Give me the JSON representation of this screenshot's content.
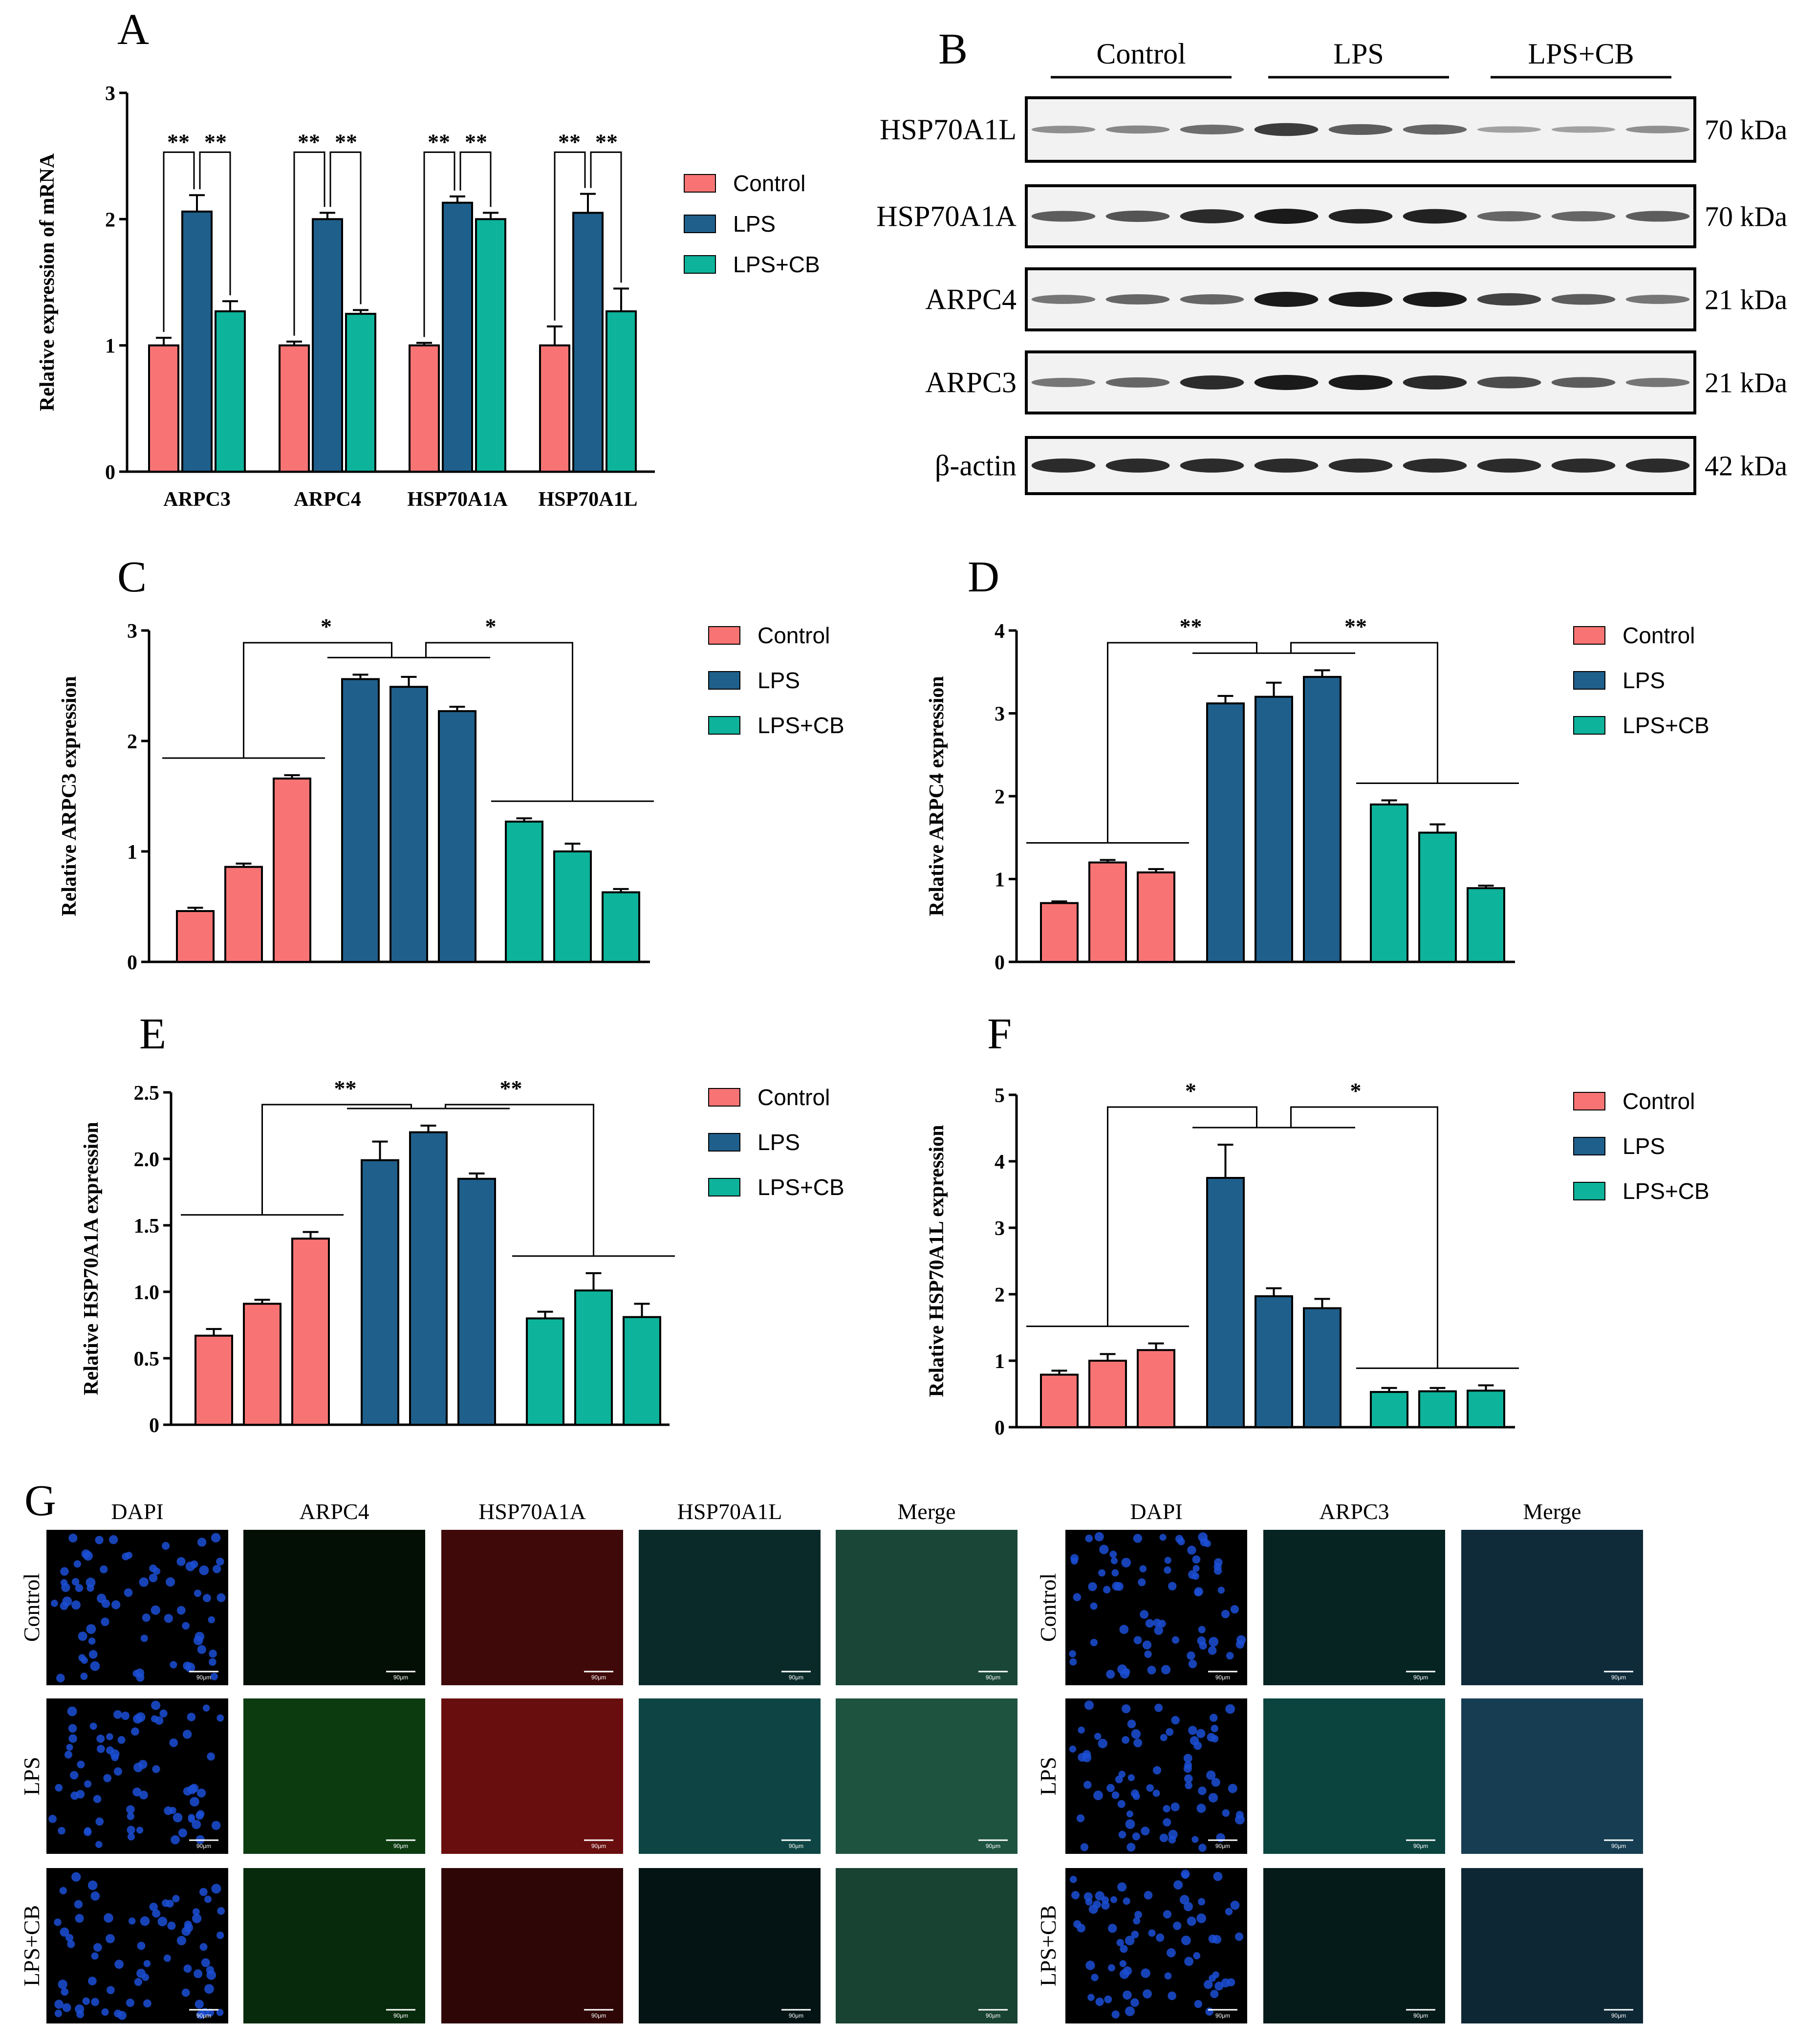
{
  "colors": {
    "control": "#f87474",
    "lps": "#1f5f8b",
    "lpscb": "#0db39a",
    "axis": "#000000"
  },
  "panels": {
    "A": "A",
    "B": "B",
    "C": "C",
    "D": "D",
    "E": "E",
    "F": "F",
    "G": "G"
  },
  "legend": [
    "Control",
    "LPS",
    "LPS+CB"
  ],
  "significance": {
    "double": "**",
    "single": "*"
  },
  "chart_data": [
    {
      "panel": "A",
      "type": "bar",
      "ylabel": "Relative expression of mRNA",
      "ylim": [
        0,
        3
      ],
      "yticks": [
        0,
        1,
        2,
        3
      ],
      "categories": [
        "ARPC3",
        "ARPC4",
        "HSP70A1A",
        "HSP70A1L"
      ],
      "series": [
        {
          "name": "Control",
          "values": [
            1.0,
            1.0,
            1.0,
            1.0
          ],
          "errors": [
            0.06,
            0.03,
            0.02,
            0.15
          ]
        },
        {
          "name": "LPS",
          "values": [
            2.06,
            2.0,
            2.13,
            2.05
          ],
          "errors": [
            0.13,
            0.05,
            0.05,
            0.15
          ]
        },
        {
          "name": "LPS+CB",
          "values": [
            1.27,
            1.25,
            2.0,
            1.27
          ],
          "errors": [
            0.08,
            0.03,
            0.05,
            0.18
          ]
        }
      ],
      "significance": [
        "**",
        "**",
        "**",
        "**",
        "**",
        "**",
        "**",
        "**"
      ]
    },
    {
      "panel": "C",
      "type": "bar",
      "ylabel": "Relative ARPC3 expression",
      "ylim": [
        0,
        3
      ],
      "yticks": [
        "0",
        "1",
        "2",
        "3"
      ],
      "groups": [
        {
          "name": "Control",
          "values": [
            0.46,
            0.86,
            1.66
          ],
          "errors": [
            0.03,
            0.03,
            0.03
          ]
        },
        {
          "name": "LPS",
          "values": [
            2.56,
            2.49,
            2.27
          ],
          "errors": [
            0.04,
            0.09,
            0.04
          ]
        },
        {
          "name": "LPS+CB",
          "values": [
            1.27,
            1.0,
            0.63
          ],
          "errors": [
            0.03,
            0.07,
            0.03
          ]
        }
      ],
      "significance": [
        "*",
        "*"
      ]
    },
    {
      "panel": "D",
      "type": "bar",
      "ylabel": "Relative ARPC4 expression",
      "ylim": [
        0,
        4
      ],
      "yticks": [
        "0",
        "1",
        "2",
        "3",
        "4"
      ],
      "groups": [
        {
          "name": "Control",
          "values": [
            0.71,
            1.2,
            1.08
          ],
          "errors": [
            0.02,
            0.03,
            0.04
          ]
        },
        {
          "name": "LPS",
          "values": [
            3.12,
            3.2,
            3.44
          ],
          "errors": [
            0.09,
            0.17,
            0.08
          ]
        },
        {
          "name": "LPS+CB",
          "values": [
            1.9,
            1.56,
            0.89
          ],
          "errors": [
            0.05,
            0.1,
            0.03
          ]
        }
      ],
      "significance": [
        "**",
        "**"
      ]
    },
    {
      "panel": "E",
      "type": "bar",
      "ylabel": "Relative HSP70A1A expression",
      "ylim": [
        0,
        2.5
      ],
      "yticks": [
        "0",
        "0.5",
        "1.0",
        "1.5",
        "2.0",
        "2.5"
      ],
      "groups": [
        {
          "name": "Control",
          "values": [
            0.67,
            0.91,
            1.4
          ],
          "errors": [
            0.05,
            0.03,
            0.05
          ]
        },
        {
          "name": "LPS",
          "values": [
            1.99,
            2.2,
            1.85
          ],
          "errors": [
            0.14,
            0.05,
            0.04
          ]
        },
        {
          "name": "LPS+CB",
          "values": [
            0.8,
            1.01,
            0.81
          ],
          "errors": [
            0.05,
            0.13,
            0.1
          ]
        }
      ],
      "significance": [
        "**",
        "**"
      ]
    },
    {
      "panel": "F",
      "type": "bar",
      "ylabel": "Relative HSP70A1L expression",
      "ylim": [
        0,
        5
      ],
      "yticks": [
        "0",
        "1",
        "2",
        "3",
        "4",
        "5"
      ],
      "groups": [
        {
          "name": "Control",
          "values": [
            0.79,
            1.0,
            1.16
          ],
          "errors": [
            0.06,
            0.1,
            0.1
          ]
        },
        {
          "name": "LPS",
          "values": [
            3.75,
            1.97,
            1.79
          ],
          "errors": [
            0.5,
            0.12,
            0.14
          ]
        },
        {
          "name": "LPS+CB",
          "values": [
            0.53,
            0.54,
            0.55
          ],
          "errors": [
            0.06,
            0.05,
            0.08
          ]
        }
      ],
      "significance": [
        "*",
        "*"
      ]
    }
  ],
  "western_blot": {
    "groups": [
      "Control",
      "LPS",
      "LPS+CB"
    ],
    "rows": [
      {
        "label": "HSP70A1L",
        "kda": "70 kDa",
        "bands": [
          0.25,
          0.3,
          0.45,
          0.75,
          0.55,
          0.5,
          0.15,
          0.15,
          0.25
        ]
      },
      {
        "label": "HSP70A1A",
        "kda": "70 kDa",
        "bands": [
          0.55,
          0.6,
          0.85,
          0.95,
          0.9,
          0.9,
          0.5,
          0.5,
          0.55
        ]
      },
      {
        "label": "ARPC4",
        "kda": "21 kDa",
        "bands": [
          0.4,
          0.5,
          0.5,
          0.95,
          0.95,
          0.95,
          0.7,
          0.55,
          0.4
        ]
      },
      {
        "label": "ARPC3",
        "kda": "21 kDa",
        "bands": [
          0.4,
          0.5,
          0.85,
          0.95,
          0.95,
          0.85,
          0.65,
          0.55,
          0.4
        ]
      },
      {
        "label": "β-actin",
        "kda": "42 kDa",
        "bands": [
          0.85,
          0.85,
          0.85,
          0.85,
          0.85,
          0.85,
          0.85,
          0.85,
          0.85
        ]
      }
    ]
  },
  "immunofluorescence": {
    "left": {
      "columns": [
        "DAPI",
        "ARPC4",
        "HSP70A1A",
        "HSP70A1L",
        "Merge"
      ],
      "column_colors": [
        "#1b4fd6",
        "#1e9a2a",
        "#d41d1d",
        "#23a8a6",
        "#3aa07a"
      ],
      "column_intensity": [
        [
          0.5,
          0.18,
          0.55,
          0.45,
          0.8
        ],
        [
          0.5,
          0.7,
          0.9,
          0.75,
          0.95
        ],
        [
          0.5,
          0.5,
          0.4,
          0.22,
          0.75
        ]
      ]
    },
    "right": {
      "columns": [
        "DAPI",
        "ARPC3",
        "Merge"
      ],
      "column_colors": [
        "#1b4fd6",
        "#1aa59a",
        "#2f82b0"
      ],
      "column_intensity": [
        [
          0.5,
          0.4,
          0.6
        ],
        [
          0.5,
          0.75,
          0.85
        ],
        [
          0.5,
          0.3,
          0.55
        ]
      ]
    },
    "rows": [
      "Control",
      "LPS",
      "LPS+CB"
    ],
    "scale_label": "90μm"
  }
}
